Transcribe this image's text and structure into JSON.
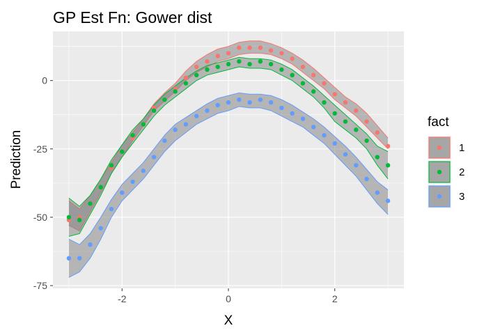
{
  "chart_data": {
    "type": "line",
    "title": "GP Est Fn: Gower dist",
    "xlabel": "X",
    "ylabel": "Prediction",
    "xlim": [
      -3.3,
      3.3
    ],
    "ylim": [
      -76,
      18
    ],
    "x_ticks": [
      -2,
      0,
      2
    ],
    "x_tick_labels": [
      "-2",
      "0",
      "2"
    ],
    "y_ticks": [
      -75,
      -50,
      -25,
      0
    ],
    "y_tick_labels": [
      "-75",
      "-50",
      "-25",
      "0"
    ],
    "grid": true,
    "legend": {
      "title": "fact",
      "position": "right"
    },
    "x": [
      -3.0,
      -2.8,
      -2.6,
      -2.4,
      -2.2,
      -2.0,
      -1.8,
      -1.6,
      -1.4,
      -1.2,
      -1.0,
      -0.8,
      -0.6,
      -0.4,
      -0.2,
      0.0,
      0.2,
      0.4,
      0.6,
      0.8,
      1.0,
      1.2,
      1.4,
      1.6,
      1.8,
      2.0,
      2.2,
      2.4,
      2.6,
      2.8,
      3.0
    ],
    "series": [
      {
        "name": "1",
        "color": "#F8766D",
        "points": [
          -51,
          -50,
          -45,
          -39,
          -32,
          -26,
          -21,
          -16,
          -10,
          -7,
          -3,
          1,
          5,
          7,
          9,
          10,
          12,
          12,
          12,
          11,
          10,
          8,
          5,
          2,
          -1,
          -5,
          -8,
          -11,
          -15,
          -19,
          -24
        ],
        "lower": [
          -53,
          -55,
          -48,
          -41,
          -34,
          -28,
          -22,
          -16.5,
          -11,
          -7.5,
          -4,
          0,
          3,
          5,
          7,
          8,
          9.5,
          10,
          10,
          9.5,
          8,
          6,
          3,
          0,
          -3,
          -7,
          -10,
          -13,
          -17,
          -21,
          -25
        ],
        "upper": [
          -44,
          -47,
          -42,
          -36,
          -30,
          -23.5,
          -19,
          -14,
          -8.5,
          -4.5,
          -1,
          3.5,
          7,
          9.5,
          11.5,
          12.5,
          14,
          14.5,
          14.5,
          13.5,
          12,
          10,
          7.5,
          4.5,
          1,
          -2.5,
          -6,
          -8.5,
          -12,
          -16.5,
          -21
        ]
      },
      {
        "name": "2",
        "color": "#00BA38",
        "points": [
          -50,
          -51,
          -45,
          -39,
          -31,
          -26,
          -20,
          -16,
          -11,
          -7,
          -4,
          -1,
          2,
          4,
          5,
          6,
          7,
          6,
          7,
          6,
          4,
          2,
          -1,
          -4,
          -8,
          -12,
          -15,
          -18,
          -22,
          -28,
          -31
        ],
        "lower": [
          -57,
          -56,
          -49,
          -42,
          -34,
          -28,
          -23,
          -18,
          -13,
          -9,
          -6,
          -3,
          0,
          2,
          3,
          4,
          5,
          4.5,
          4.5,
          4,
          2,
          0,
          -3,
          -6,
          -10,
          -15,
          -18,
          -21,
          -25,
          -31,
          -36
        ],
        "upper": [
          -43,
          -46,
          -42,
          -36,
          -29,
          -23.5,
          -18,
          -14,
          -9,
          -5,
          -2,
          1,
          3.5,
          5.5,
          6.5,
          7.5,
          8.5,
          8,
          8,
          7.5,
          6,
          4,
          1,
          -2,
          -5.5,
          -9,
          -12.5,
          -16,
          -19.5,
          -24,
          -26
        ]
      },
      {
        "name": "3",
        "color": "#619CFF",
        "points": [
          -65,
          -65,
          -60,
          -54,
          -47,
          -41,
          -37,
          -33,
          -28,
          -22,
          -18,
          -16,
          -13,
          -11,
          -9,
          -8,
          -7,
          -8,
          -7,
          -8,
          -10,
          -12,
          -14,
          -17,
          -20,
          -23,
          -27,
          -31,
          -36,
          -41,
          -44
        ],
        "lower": [
          -72,
          -70,
          -65,
          -58,
          -50,
          -44,
          -40,
          -36,
          -31,
          -26,
          -22,
          -19,
          -16,
          -14,
          -12,
          -11,
          -9.5,
          -10,
          -10,
          -11,
          -13,
          -15,
          -17,
          -20,
          -23,
          -27,
          -31,
          -35,
          -40,
          -45,
          -49
        ],
        "upper": [
          -58,
          -60,
          -56,
          -50,
          -43.5,
          -38,
          -34,
          -30,
          -25,
          -20,
          -16,
          -13.5,
          -11,
          -8.5,
          -6.5,
          -5.5,
          -4.5,
          -5,
          -5,
          -5.5,
          -7,
          -9,
          -11.5,
          -14,
          -17,
          -20.5,
          -24,
          -28,
          -32.5,
          -37,
          -40
        ]
      }
    ]
  }
}
